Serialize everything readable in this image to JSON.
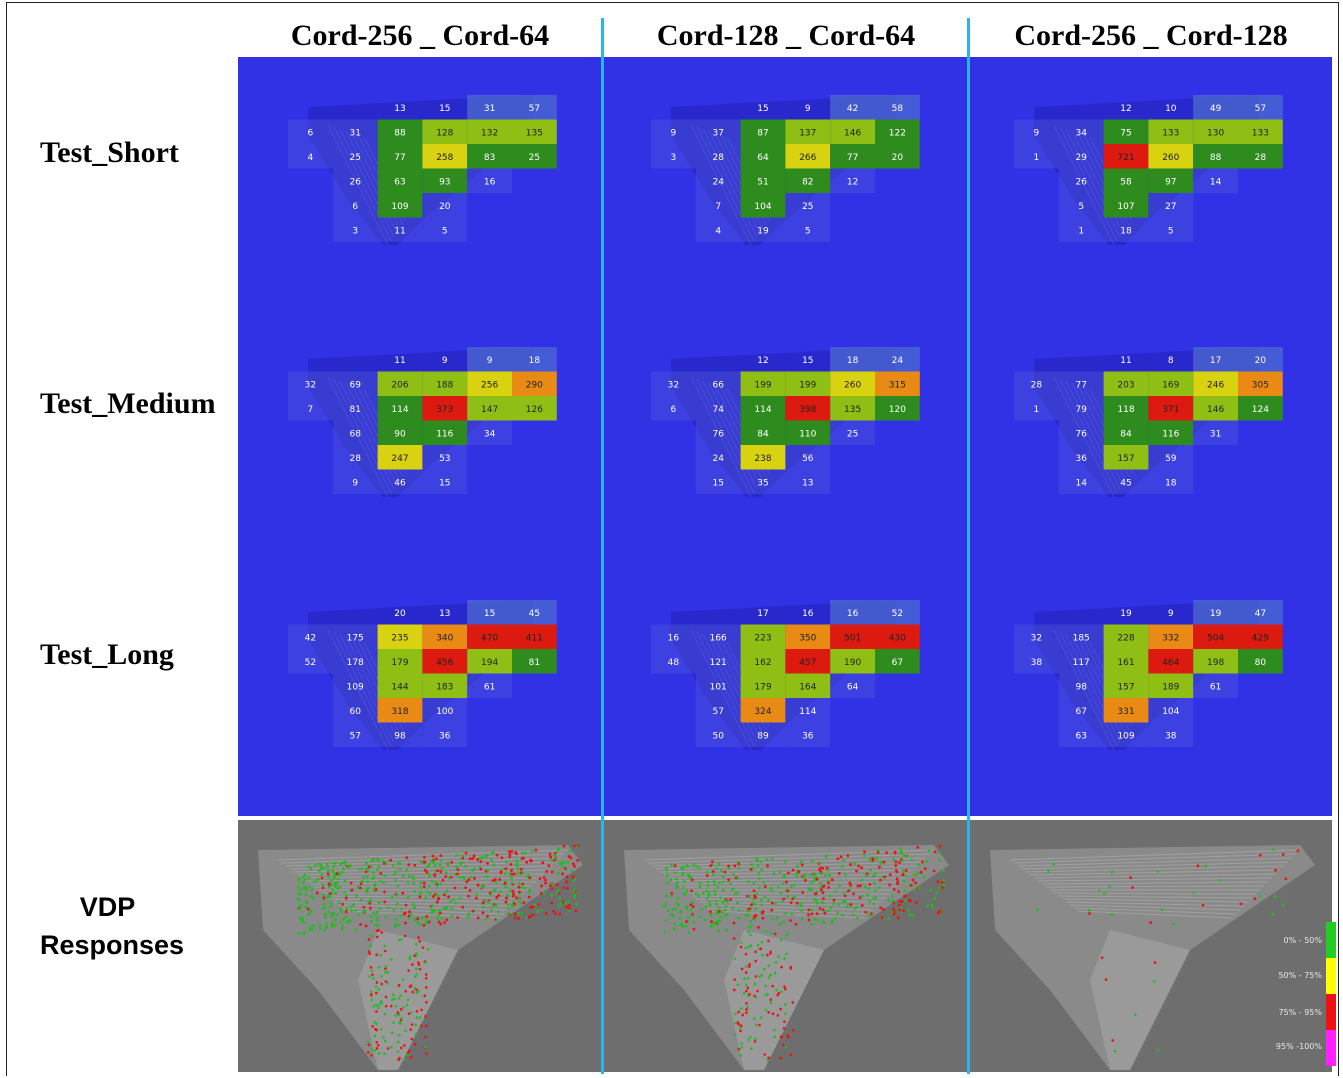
{
  "columns": [
    {
      "header": "Cord-256 _ Cord-64"
    },
    {
      "header": "Cord-128 _ Cord-64"
    },
    {
      "header": "Cord-256 _ Cord-128"
    }
  ],
  "rows": [
    {
      "label": "Test_Short"
    },
    {
      "label": "Test_Medium"
    },
    {
      "label": "Test_Long"
    },
    {
      "label_line1": "VDP",
      "label_line2": "Responses"
    }
  ],
  "legend": [
    {
      "label": "0% - 50%",
      "color": "#22cc22"
    },
    {
      "label": "50% - 75%",
      "color": "#ffff00"
    },
    {
      "label": "75% - 95%",
      "color": "#ee1111"
    },
    {
      "label": "95% -100%",
      "color": "#ff22ff"
    }
  ],
  "colors": {
    "background": "#3131e6",
    "separator": "#29b6ee",
    "vdp_background": "#6e6e6e",
    "cell_green": "#2e8b1e",
    "cell_yellowgreen": "#8fbf14",
    "cell_yellow": "#d8d210",
    "cell_orange": "#e88a14",
    "cell_red": "#dd1a10",
    "cell_dark": "#32558a"
  },
  "chart_data": {
    "type": "heatmap",
    "description_axes": "",
    "panels": [
      {
        "column": "Cord-256 _ Cord-64",
        "row": "Test_Short",
        "grid": [
          [
            "",
            "",
            "13",
            "15",
            "31",
            "57"
          ],
          [
            "6",
            "31",
            "88",
            "128",
            "132",
            "135"
          ],
          [
            "4",
            "25",
            "77",
            "258",
            "83",
            "25"
          ],
          [
            "",
            "26",
            "63",
            "93",
            "16",
            ""
          ],
          [
            "",
            "6",
            "109",
            "20",
            "",
            ""
          ],
          [
            "",
            "3",
            "11",
            "5",
            "",
            ""
          ]
        ]
      },
      {
        "column": "Cord-128 _ Cord-64",
        "row": "Test_Short",
        "grid": [
          [
            "",
            "",
            "15",
            "9",
            "42",
            "58"
          ],
          [
            "9",
            "37",
            "87",
            "137",
            "146",
            "122"
          ],
          [
            "3",
            "28",
            "64",
            "266",
            "77",
            "20"
          ],
          [
            "",
            "24",
            "51",
            "82",
            "12",
            ""
          ],
          [
            "",
            "7",
            "104",
            "25",
            "",
            ""
          ],
          [
            "",
            "4",
            "19",
            "5",
            "",
            ""
          ]
        ]
      },
      {
        "column": "Cord-256 _ Cord-128",
        "row": "Test_Short",
        "grid": [
          [
            "",
            "",
            "12",
            "10",
            "49",
            "57"
          ],
          [
            "9",
            "34",
            "75",
            "133",
            "130",
            "133"
          ],
          [
            "1",
            "29",
            "721",
            "260",
            "88",
            "28"
          ],
          [
            "",
            "26",
            "58",
            "97",
            "14",
            ""
          ],
          [
            "",
            "5",
            "107",
            "27",
            "",
            ""
          ],
          [
            "",
            "1",
            "18",
            "5",
            "",
            ""
          ]
        ]
      },
      {
        "column": "Cord-256 _ Cord-64",
        "row": "Test_Medium",
        "grid": [
          [
            "",
            "",
            "11",
            "9",
            "9",
            "18"
          ],
          [
            "32",
            "69",
            "206",
            "188",
            "256",
            "290"
          ],
          [
            "7",
            "81",
            "114",
            "373",
            "147",
            "126"
          ],
          [
            "",
            "68",
            "90",
            "116",
            "34",
            ""
          ],
          [
            "",
            "28",
            "247",
            "53",
            "",
            ""
          ],
          [
            "",
            "9",
            "46",
            "15",
            "",
            ""
          ]
        ]
      },
      {
        "column": "Cord-128 _ Cord-64",
        "row": "Test_Medium",
        "grid": [
          [
            "",
            "",
            "12",
            "15",
            "18",
            "24"
          ],
          [
            "32",
            "66",
            "199",
            "199",
            "260",
            "315"
          ],
          [
            "6",
            "74",
            "114",
            "398",
            "135",
            "120"
          ],
          [
            "",
            "76",
            "84",
            "110",
            "25",
            ""
          ],
          [
            "",
            "24",
            "238",
            "56",
            "",
            ""
          ],
          [
            "",
            "15",
            "35",
            "13",
            "",
            ""
          ]
        ]
      },
      {
        "column": "Cord-256 _ Cord-128",
        "row": "Test_Medium",
        "grid": [
          [
            "",
            "",
            "11",
            "8",
            "17",
            "20"
          ],
          [
            "28",
            "77",
            "203",
            "169",
            "246",
            "305"
          ],
          [
            "1",
            "79",
            "118",
            "371",
            "146",
            "124"
          ],
          [
            "",
            "76",
            "84",
            "116",
            "31",
            ""
          ],
          [
            "",
            "36",
            "157",
            "59",
            "",
            ""
          ],
          [
            "",
            "14",
            "45",
            "18",
            "",
            ""
          ]
        ]
      },
      {
        "column": "Cord-256 _ Cord-64",
        "row": "Test_Long",
        "grid": [
          [
            "",
            "",
            "20",
            "13",
            "15",
            "45"
          ],
          [
            "42",
            "175",
            "235",
            "340",
            "470",
            "411"
          ],
          [
            "52",
            "178",
            "179",
            "456",
            "194",
            "81"
          ],
          [
            "",
            "109",
            "144",
            "183",
            "61",
            ""
          ],
          [
            "",
            "60",
            "318",
            "100",
            "",
            ""
          ],
          [
            "",
            "57",
            "98",
            "36",
            "",
            ""
          ]
        ]
      },
      {
        "column": "Cord-128 _ Cord-64",
        "row": "Test_Long",
        "grid": [
          [
            "",
            "",
            "17",
            "16",
            "16",
            "52"
          ],
          [
            "16",
            "166",
            "223",
            "350",
            "501",
            "430"
          ],
          [
            "48",
            "121",
            "162",
            "457",
            "190",
            "67"
          ],
          [
            "",
            "101",
            "179",
            "164",
            "64",
            ""
          ],
          [
            "",
            "57",
            "324",
            "114",
            "",
            ""
          ],
          [
            "",
            "50",
            "89",
            "36",
            "",
            ""
          ]
        ]
      },
      {
        "column": "Cord-256 _ Cord-128",
        "row": "Test_Long",
        "grid": [
          [
            "",
            "",
            "19",
            "9",
            "19",
            "47"
          ],
          [
            "32",
            "185",
            "228",
            "332",
            "504",
            "429"
          ],
          [
            "38",
            "117",
            "161",
            "464",
            "198",
            "80"
          ],
          [
            "",
            "98",
            "157",
            "189",
            "61",
            ""
          ],
          [
            "",
            "67",
            "331",
            "104",
            "",
            ""
          ],
          [
            "",
            "63",
            "109",
            "38",
            "",
            ""
          ]
        ]
      }
    ]
  }
}
